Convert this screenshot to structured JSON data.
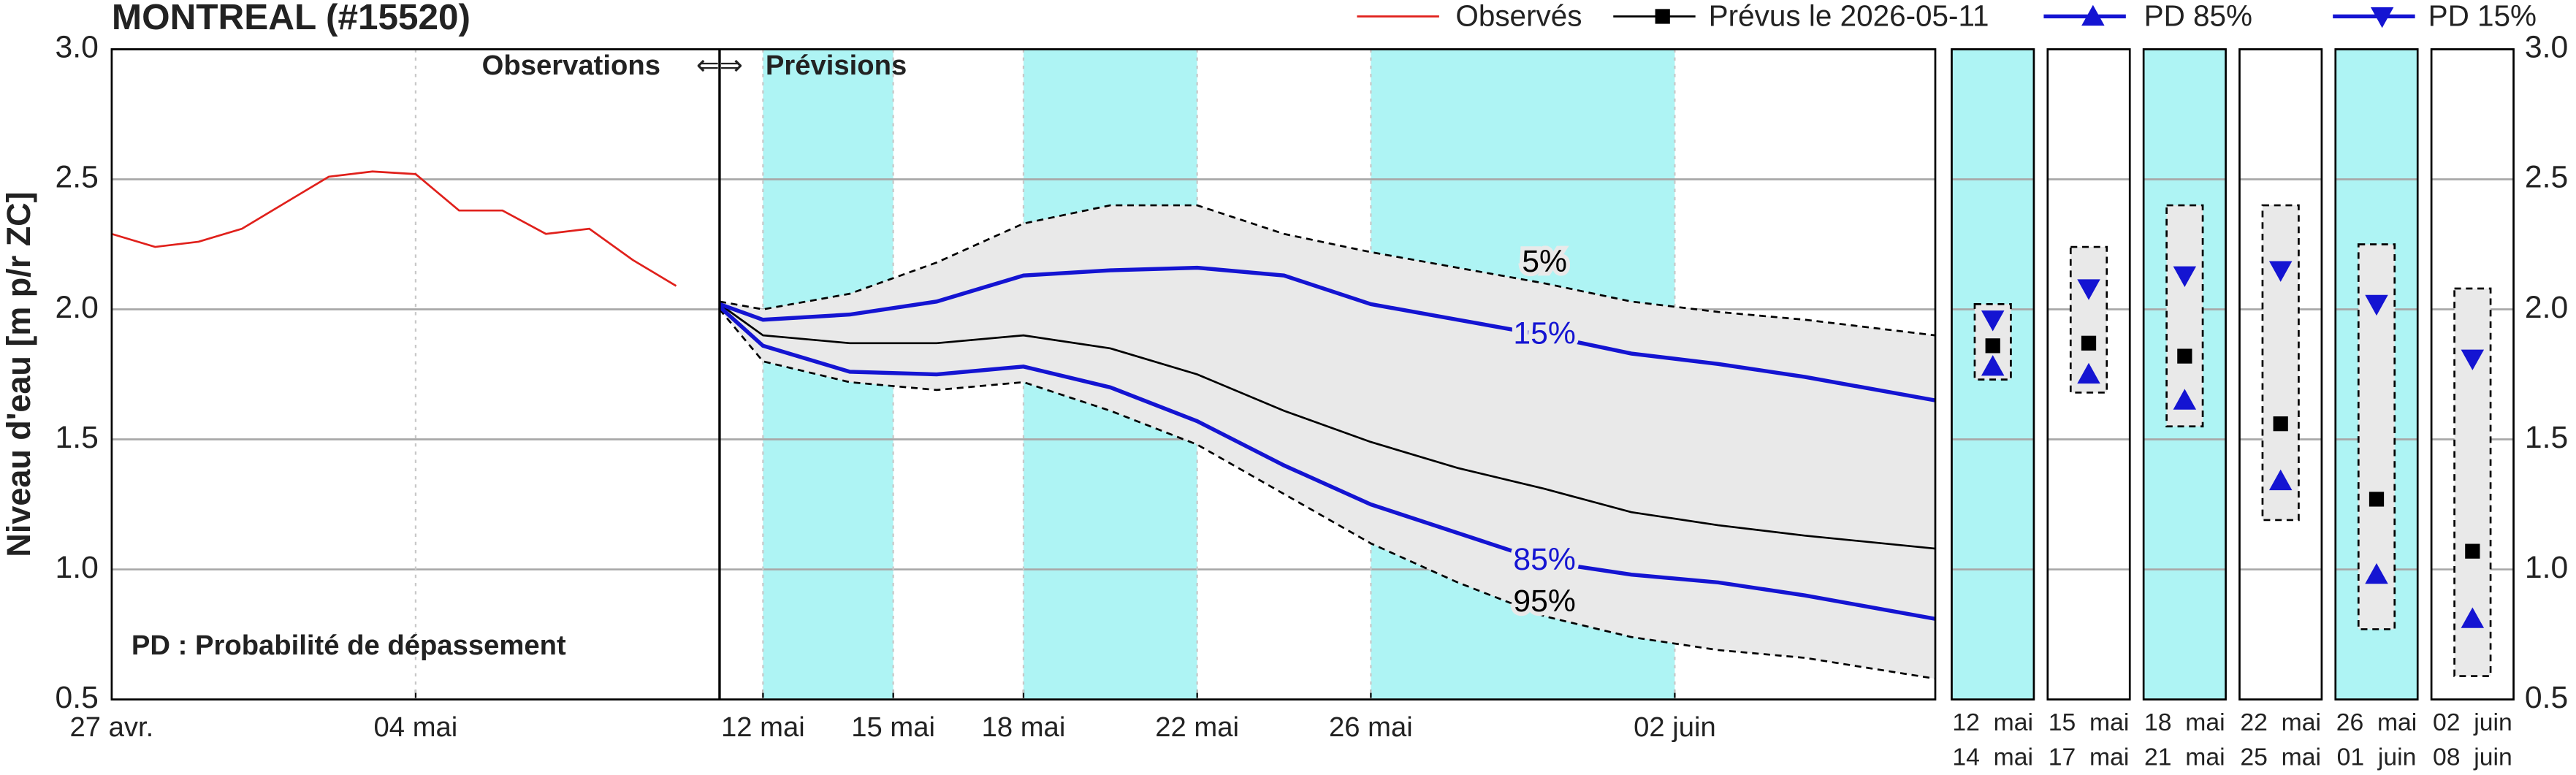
{
  "chart_data": {
    "type": "line",
    "title": "MONTREAL (#15520)",
    "y_label": "Niveau d'eau [m p/r ZC]",
    "annotations": {
      "observations": "Observations",
      "arrows": "⇐⇒",
      "forecast": "Prévisions",
      "footnote": "PD : Probabilité de dépassement"
    },
    "xlim": [
      "2026-04-27",
      "2026-06-08"
    ],
    "xticks": [
      {
        "value": "2026-04-27",
        "label": "27 avr."
      },
      {
        "value": "2026-05-04",
        "label": "04 mai"
      },
      {
        "value": "2026-05-12",
        "label": "12 mai"
      },
      {
        "value": "2026-05-15",
        "label": "15 mai"
      },
      {
        "value": "2026-05-18",
        "label": "18 mai"
      },
      {
        "value": "2026-05-22",
        "label": "22 mai"
      },
      {
        "value": "2026-05-26",
        "label": "26 mai"
      },
      {
        "value": "2026-06-02",
        "label": "02 juin"
      }
    ],
    "ylim": [
      0.5,
      3.0
    ],
    "yticks": [
      0.5,
      {
        "value": 1,
        "label": "1.0"
      },
      1.5,
      {
        "value": 2,
        "label": "2.0"
      },
      2.5,
      {
        "value": 3,
        "label": "3.0"
      }
    ],
    "grid": true,
    "shaded_color": "#aef4f4",
    "shaded_periods": [
      [
        "2026-05-12",
        "2026-05-15"
      ],
      [
        "2026-05-18",
        "2026-05-22"
      ],
      [
        "2026-05-26",
        "2026-06-02"
      ]
    ],
    "series": [
      {
        "name": "Observés",
        "color": "#e0201b",
        "x": [
          "2026-04-27",
          "2026-04-28",
          "2026-04-29",
          "2026-04-30",
          "2026-05-01",
          "2026-05-02",
          "2026-05-03",
          "2026-05-04",
          "2026-05-05",
          "2026-05-06",
          "2026-05-07",
          "2026-05-08",
          "2026-05-09",
          "2026-05-10"
        ],
        "values": [
          2.29,
          2.24,
          2.26,
          2.31,
          2.41,
          2.51,
          2.53,
          2.52,
          2.38,
          2.38,
          2.29,
          2.31,
          2.19,
          2.09
        ]
      },
      {
        "name": "Prévus le 2026-05-11",
        "color": "#000000",
        "marker": "square",
        "x": [
          "2026-05-11",
          "2026-05-12",
          "2026-05-14",
          "2026-05-16",
          "2026-05-18",
          "2026-05-20",
          "2026-05-22",
          "2026-05-24",
          "2026-05-26",
          "2026-05-28",
          "2026-05-30",
          "2026-06-01",
          "2026-06-03",
          "2026-06-05",
          "2026-06-08"
        ],
        "values": [
          2.02,
          1.9,
          1.87,
          1.87,
          1.9,
          1.85,
          1.75,
          1.61,
          1.49,
          1.39,
          1.31,
          1.22,
          1.17,
          1.13,
          1.08
        ]
      },
      {
        "name": "PD 85%",
        "label": "85%",
        "color": "#1414d2",
        "marker": "triangle-up",
        "x": [
          "2026-05-11",
          "2026-05-12",
          "2026-05-14",
          "2026-05-16",
          "2026-05-18",
          "2026-05-20",
          "2026-05-22",
          "2026-05-24",
          "2026-05-26",
          "2026-05-28",
          "2026-05-30",
          "2026-06-01",
          "2026-06-03",
          "2026-06-05",
          "2026-06-08"
        ],
        "values": [
          2.01,
          1.86,
          1.76,
          1.75,
          1.78,
          1.7,
          1.57,
          1.4,
          1.25,
          1.14,
          1.03,
          0.98,
          0.95,
          0.9,
          0.81
        ]
      },
      {
        "name": "PD 15%",
        "label": "15%",
        "color": "#1414d2",
        "marker": "triangle-down",
        "x": [
          "2026-05-11",
          "2026-05-12",
          "2026-05-14",
          "2026-05-16",
          "2026-05-18",
          "2026-05-20",
          "2026-05-22",
          "2026-05-24",
          "2026-05-26",
          "2026-05-28",
          "2026-05-30",
          "2026-06-01",
          "2026-06-03",
          "2026-06-05",
          "2026-06-08"
        ],
        "values": [
          2.02,
          1.96,
          1.98,
          2.03,
          2.13,
          2.15,
          2.16,
          2.13,
          2.02,
          1.96,
          1.9,
          1.83,
          1.79,
          1.74,
          1.65
        ]
      }
    ],
    "band": {
      "color": "#e9e9e9",
      "x": [
        "2026-05-11",
        "2026-05-12",
        "2026-05-14",
        "2026-05-16",
        "2026-05-18",
        "2026-05-20",
        "2026-05-22",
        "2026-05-24",
        "2026-05-26",
        "2026-05-28",
        "2026-05-30",
        "2026-06-01",
        "2026-06-03",
        "2026-06-05",
        "2026-06-08"
      ],
      "upper": {
        "label": "5%",
        "values": [
          2.03,
          2.0,
          2.06,
          2.18,
          2.33,
          2.4,
          2.4,
          2.29,
          2.22,
          2.16,
          2.1,
          2.03,
          1.99,
          1.96,
          1.9
        ]
      },
      "lower": {
        "label": "95%",
        "values": [
          2.0,
          1.8,
          1.72,
          1.69,
          1.72,
          1.61,
          1.48,
          1.29,
          1.1,
          0.95,
          0.82,
          0.74,
          0.69,
          0.66,
          0.58
        ]
      }
    },
    "panels": [
      {
        "label": [
          "12  mai",
          "14  mai"
        ],
        "shaded": true,
        "low": 1.73,
        "high": 2.02,
        "median": 1.86,
        "pd85": 1.78,
        "pd15": 1.96
      },
      {
        "label": [
          "15  mai",
          "17  mai"
        ],
        "shaded": false,
        "low": 1.68,
        "high": 2.24,
        "median": 1.87,
        "pd85": 1.75,
        "pd15": 2.08
      },
      {
        "label": [
          "18  mai",
          "21  mai"
        ],
        "shaded": true,
        "low": 1.55,
        "high": 2.4,
        "median": 1.82,
        "pd85": 1.65,
        "pd15": 2.13
      },
      {
        "label": [
          "22  mai",
          "25  mai"
        ],
        "shaded": false,
        "low": 1.19,
        "high": 2.4,
        "median": 1.56,
        "pd85": 1.34,
        "pd15": 2.15
      },
      {
        "label": [
          "26  mai",
          "01  juin"
        ],
        "shaded": true,
        "low": 0.77,
        "high": 2.25,
        "median": 1.27,
        "pd85": 0.98,
        "pd15": 2.02
      },
      {
        "label": [
          "02  juin",
          "08  juin"
        ],
        "shaded": false,
        "low": 0.59,
        "high": 2.08,
        "median": 1.07,
        "pd85": 0.81,
        "pd15": 1.81
      }
    ]
  }
}
